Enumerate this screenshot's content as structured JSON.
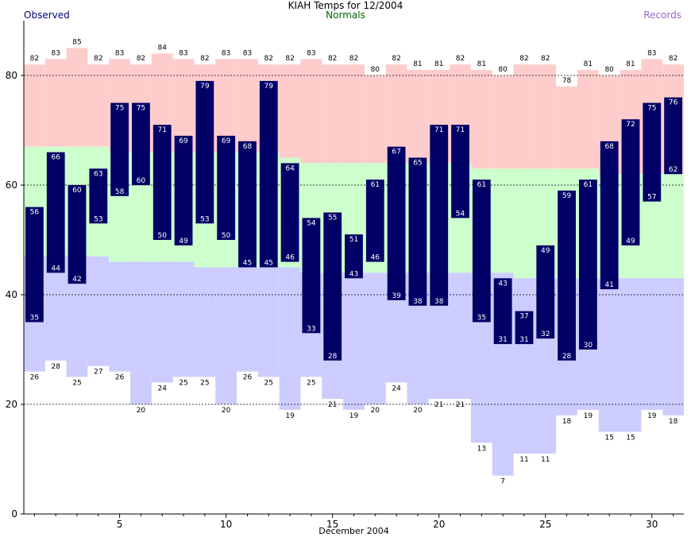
{
  "header": {
    "title": "KIAH Temps for 12/2004",
    "legend_observed": "Observed",
    "legend_normals": "Normals",
    "legend_records": "Records"
  },
  "colors": {
    "observed_bar": "#000066",
    "observed_label": "#ffffff",
    "normal_band": "#ccffcc",
    "record_high_band": "#ffcccc",
    "record_low_band": "#ccccff",
    "legend_observed": "#000080",
    "legend_normals": "#006600",
    "legend_records": "#9966cc"
  },
  "chart_data": {
    "type": "bar",
    "title": "KIAH Temps for 12/2004",
    "xlabel": "December 2004",
    "ylabel": "",
    "xlim": [
      0.5,
      31.5
    ],
    "ylim": [
      0,
      90
    ],
    "x_ticks": [
      5,
      10,
      15,
      20,
      25,
      30
    ],
    "y_ticks": [
      0,
      20,
      40,
      60,
      80
    ],
    "grid": "dashed horizontal at 20, 60, 80",
    "days": [
      1,
      2,
      3,
      4,
      5,
      6,
      7,
      8,
      9,
      10,
      11,
      12,
      13,
      14,
      15,
      16,
      17,
      18,
      19,
      20,
      21,
      22,
      23,
      24,
      25,
      26,
      27,
      28,
      29,
      30,
      31
    ],
    "series": [
      {
        "name": "Observed",
        "role": "observed_high",
        "values": [
          56,
          66,
          60,
          63,
          75,
          75,
          71,
          69,
          79,
          69,
          68,
          79,
          64,
          54,
          55,
          51,
          61,
          67,
          65,
          71,
          71,
          61,
          43,
          37,
          49,
          59,
          61,
          68,
          72,
          75,
          76
        ]
      },
      {
        "name": "Observed",
        "role": "observed_low",
        "values": [
          35,
          44,
          42,
          53,
          58,
          60,
          50,
          49,
          53,
          50,
          45,
          45,
          46,
          33,
          28,
          43,
          46,
          39,
          38,
          38,
          54,
          35,
          31,
          31,
          32,
          28,
          30,
          41,
          49,
          57,
          62
        ]
      },
      {
        "name": "Normals",
        "role": "normal_high",
        "values": [
          67,
          67,
          67,
          67,
          66,
          66,
          66,
          66,
          66,
          66,
          66,
          66,
          65,
          64,
          64,
          64,
          64,
          64,
          64,
          64,
          64,
          63,
          63,
          63,
          63,
          63,
          63,
          62,
          62,
          62,
          62
        ]
      },
      {
        "name": "Normals",
        "role": "normal_low",
        "values": [
          47,
          47,
          47,
          47,
          46,
          46,
          46,
          46,
          45,
          45,
          45,
          45,
          45,
          44,
          44,
          44,
          44,
          44,
          44,
          44,
          44,
          44,
          44,
          43,
          43,
          43,
          43,
          43,
          43,
          43,
          43
        ]
      },
      {
        "name": "Records",
        "role": "record_high",
        "values": [
          82,
          83,
          85,
          82,
          83,
          82,
          84,
          83,
          82,
          83,
          83,
          82,
          82,
          83,
          82,
          82,
          80,
          82,
          81,
          81,
          82,
          81,
          80,
          82,
          82,
          78,
          81,
          80,
          81,
          83,
          82
        ]
      },
      {
        "name": "Records",
        "role": "record_low",
        "values": [
          26,
          28,
          25,
          27,
          26,
          20,
          24,
          25,
          25,
          20,
          26,
          25,
          19,
          25,
          21,
          19,
          20,
          24,
          20,
          21,
          21,
          13,
          7,
          11,
          11,
          18,
          19,
          15,
          15,
          19,
          18
        ]
      }
    ]
  }
}
